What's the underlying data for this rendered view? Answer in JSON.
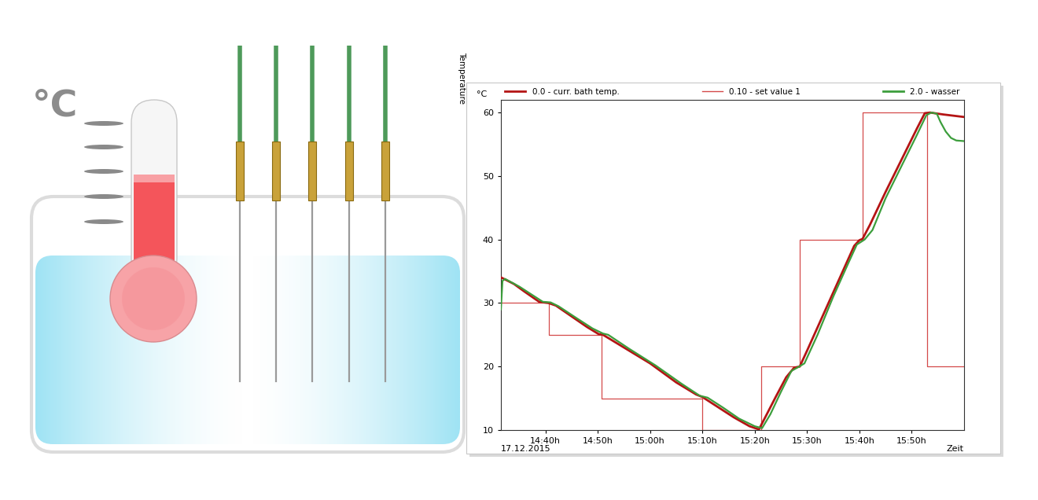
{
  "illustration": {
    "label": "°C"
  },
  "chart_data": {
    "type": "line",
    "y_label": "Temperature",
    "y_unit": "°C",
    "x_label": "Zeit",
    "date": "17.12.2015",
    "legend": "top",
    "grid": false,
    "xlim": [
      871.5,
      960
    ],
    "xticks": [
      {
        "value": 880,
        "label": "14:40h"
      },
      {
        "value": 890,
        "label": "14:50h"
      },
      {
        "value": 900,
        "label": "15:00h"
      },
      {
        "value": 910,
        "label": "15:10h"
      },
      {
        "value": 920,
        "label": "15:20h"
      },
      {
        "value": 930,
        "label": "15:30h"
      },
      {
        "value": 940,
        "label": "15:40h"
      },
      {
        "value": 950,
        "label": "15:50h"
      }
    ],
    "ylim": [
      10,
      62
    ],
    "yticks": [
      10,
      20,
      30,
      40,
      50,
      60
    ],
    "series": [
      {
        "name": "0.0 - curr. bath temp.",
        "color": "#b41414",
        "line_style": "solid",
        "x": [
          871.6,
          874,
          876,
          878.8,
          880.6,
          882,
          885,
          888,
          890.2,
          891,
          895,
          900,
          905,
          908.8,
          910,
          913,
          916,
          919,
          920.8,
          922,
          924,
          926,
          927.5,
          928.6,
          930,
          933,
          936,
          939,
          940,
          940.6,
          942,
          945,
          948,
          951,
          952.5,
          953.5,
          956,
          958,
          960
        ],
        "values": [
          34,
          33,
          31.8,
          30.2,
          30,
          29.6,
          27.9,
          26.2,
          25.1,
          25,
          23,
          20.5,
          17.5,
          15.6,
          15.2,
          13.6,
          12,
          10.6,
          10.1,
          12,
          15.2,
          18.3,
          19.8,
          20,
          22.5,
          28,
          33.5,
          39,
          39.9,
          40.1,
          42.3,
          47.5,
          52.5,
          57.5,
          59.9,
          60,
          59.7,
          59.5,
          59.3
        ]
      },
      {
        "name": "0.10 - set value 1",
        "color": "#d44a4a",
        "line_style": "steps",
        "x": [
          871.6,
          880.6,
          890.8,
          910.0,
          921.2,
          928.6,
          940.6,
          952.9,
          960
        ],
        "values": [
          30,
          25,
          15,
          10,
          20,
          40,
          60,
          20,
          20
        ]
      },
      {
        "name": "2.0 - wasser",
        "color": "#3c9e3c",
        "line_style": "solid",
        "x": [
          871.5,
          871.8,
          872.3,
          875,
          878,
          879.5,
          881,
          882.5,
          886,
          889,
          891,
          892,
          896,
          901,
          906,
          909.5,
          911,
          914,
          917,
          920,
          921.4,
          923,
          925,
          927,
          928.5,
          929.5,
          932,
          935,
          938,
          939.5,
          941,
          942.5,
          945,
          948,
          951,
          952.8,
          953.8,
          954.8,
          955.5,
          956.5,
          957.5,
          958.5,
          960
        ],
        "values": [
          29,
          33.5,
          33.8,
          32.6,
          31,
          30.2,
          30.1,
          29.5,
          27.6,
          26,
          25.2,
          25,
          22.8,
          20.2,
          17.3,
          15.4,
          15.1,
          13.5,
          11.8,
          10.6,
          10.3,
          12.5,
          16,
          19.3,
          20,
          20.5,
          25,
          31,
          36.5,
          39.2,
          40,
          41.5,
          46.5,
          51.5,
          56.5,
          59.6,
          60,
          59.8,
          58.5,
          57,
          56,
          55.6,
          55.5
        ]
      }
    ]
  }
}
